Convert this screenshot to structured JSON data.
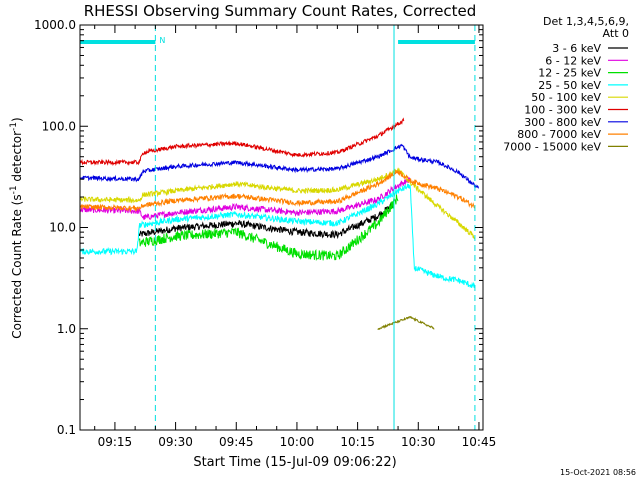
{
  "chart_data": {
    "type": "line",
    "title": "RHESSI Observing Summary Count Rates, Corrected",
    "xlabel": "Start Time (15-Jul-09 09:06:22)",
    "ylabel_main": "Corrected Count Rate (s",
    "ylabel_sup1": "-1",
    "ylabel_mid": " detector",
    "ylabel_sup2": "-1",
    "ylabel_end": ")",
    "yscale": "log",
    "ylim": [
      0.1,
      1000
    ],
    "xlim": [
      "09:06:22",
      "10:46:00"
    ],
    "x_ticks": [
      "09:15",
      "09:30",
      "09:45",
      "10:00",
      "10:15",
      "10:30",
      "10:45"
    ],
    "y_ticks": [
      "0.1",
      "1.0",
      "10.0",
      "100.0",
      "1000.0"
    ],
    "timestamp": "15-Oct-2021 08:56",
    "legend": {
      "header1": "Det 1,3,4,5,6,9,",
      "header2": "Att 0",
      "placement": "right"
    },
    "markers": {
      "night_label": "N",
      "cyan_bars": [
        [
          "09:06:22",
          "09:25:00"
        ],
        [
          "10:25:00",
          "10:44:00"
        ]
      ],
      "dashed_lines": [
        "09:25:00",
        "10:44:00"
      ],
      "solid_lines": [
        "10:24:00"
      ]
    },
    "series": [
      {
        "name": "3 - 6 keV",
        "color": "#000000",
        "noise": 0.035,
        "x": [
          "09:21",
          "09:30",
          "09:45",
          "10:00",
          "10:10",
          "10:20",
          "10:24"
        ],
        "y": [
          8.5,
          9.8,
          11,
          9,
          8.5,
          13,
          17
        ]
      },
      {
        "name": "6 - 12 keV",
        "color": "#e000e0",
        "noise": 0.03,
        "x": [
          "09:06:22",
          "09:21",
          "09:22",
          "09:30",
          "09:45",
          "10:00",
          "10:10",
          "10:20",
          "10:25",
          "10:28"
        ],
        "y": [
          15,
          14.5,
          12.5,
          14,
          16,
          14,
          14.5,
          19,
          26,
          30
        ]
      },
      {
        "name": "12 - 25 keV",
        "color": "#00e000",
        "noise": 0.05,
        "x": [
          "09:21",
          "09:30",
          "09:45",
          "10:00",
          "10:10",
          "10:20",
          "10:25"
        ],
        "y": [
          7,
          8.2,
          9,
          5.5,
          5.2,
          11,
          20
        ]
      },
      {
        "name": "25 - 50 keV",
        "color": "#00ffff",
        "noise": 0.03,
        "x": [
          "09:06:22",
          "09:20:30",
          "09:21",
          "09:30",
          "09:45",
          "10:00",
          "10:10",
          "10:20",
          "10:25",
          "10:28",
          "10:29",
          "10:32",
          "10:36",
          "10:40",
          "10:44"
        ],
        "y": [
          5.8,
          5.8,
          10.5,
          12,
          13.5,
          11.5,
          11,
          17,
          23,
          26,
          4,
          3.6,
          3.2,
          3,
          2.6
        ]
      },
      {
        "name": "50 - 100 keV",
        "color": "#d8d800",
        "noise": 0.025,
        "x": [
          "09:06:22",
          "09:21",
          "09:22",
          "09:30",
          "09:45",
          "10:00",
          "10:10",
          "10:20",
          "10:25",
          "10:28",
          "10:35",
          "10:40",
          "10:44"
        ],
        "y": [
          19,
          18.5,
          21,
          23,
          27,
          23,
          23.5,
          30,
          37,
          28,
          16,
          11,
          8
        ]
      },
      {
        "name": "100 - 300 keV",
        "color": "#e00000",
        "noise": 0.02,
        "x": [
          "09:06:22",
          "09:21",
          "09:22",
          "09:30",
          "09:45",
          "10:00",
          "10:10",
          "10:20",
          "10:26:30"
        ],
        "y": [
          44,
          44,
          55,
          63,
          68,
          52,
          55,
          80,
          115
        ]
      },
      {
        "name": "300 - 800 keV",
        "color": "#0000e0",
        "noise": 0.02,
        "x": [
          "09:06:22",
          "09:21",
          "09:22",
          "09:30",
          "09:45",
          "10:00",
          "10:10",
          "10:20",
          "10:26",
          "10:28",
          "10:35",
          "10:40",
          "10:45"
        ],
        "y": [
          31,
          30,
          36,
          40,
          44,
          37,
          38,
          50,
          65,
          49,
          44,
          35,
          24
        ]
      },
      {
        "name": "800 - 7000 keV",
        "color": "#ff8000",
        "noise": 0.025,
        "x": [
          "09:06:22",
          "09:21",
          "09:22",
          "09:30",
          "09:45",
          "10:00",
          "10:10",
          "10:20",
          "10:25",
          "10:28",
          "10:35",
          "10:40",
          "10:44"
        ],
        "y": [
          16,
          15.5,
          16.5,
          18.5,
          20.5,
          17.5,
          18,
          27,
          36,
          29,
          24,
          20,
          16
        ]
      },
      {
        "name": "7000 - 15000 keV",
        "color": "#808000",
        "noise": 0.01,
        "x": [
          "10:20",
          "10:28",
          "10:34"
        ],
        "y": [
          1.0,
          1.3,
          1.0
        ]
      }
    ]
  }
}
